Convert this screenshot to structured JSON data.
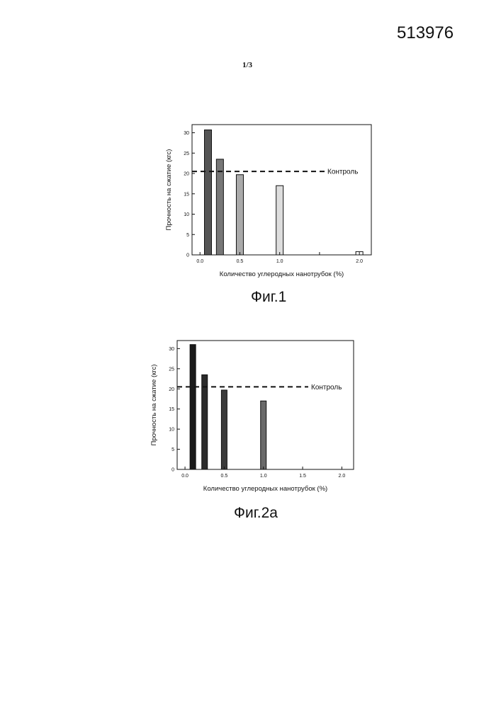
{
  "page": {
    "doc_number": "513976",
    "page_number": "1/3"
  },
  "figures": [
    {
      "caption": "Фиг.1"
    },
    {
      "caption": "Фиг.2а"
    }
  ],
  "chart_data": [
    {
      "type": "bar",
      "title": "",
      "xlabel": "Количество углеродных нанотрубок (%)",
      "ylabel": "Прочность на сжатие (кгс)",
      "xlim": [
        -0.1,
        2.15
      ],
      "ylim": [
        0,
        32
      ],
      "xticks": [
        0.0,
        0.5,
        1.0,
        1.5,
        2.0
      ],
      "xtick_labels": [
        "0.0",
        "0.5",
        "1.0",
        "",
        "2.0"
      ],
      "yticks": [
        0,
        5,
        10,
        15,
        20,
        25,
        30
      ],
      "x": [
        0.1,
        0.25,
        0.5,
        1.0,
        2.0
      ],
      "values": [
        30.7,
        23.5,
        19.7,
        17.0,
        0.8
      ],
      "fills": [
        "#555555",
        "#777777",
        "#aaaaaa",
        "#dddddd",
        "#ffffff"
      ],
      "reference_line": {
        "value": 20.5,
        "label": "Контроль"
      },
      "grid": false
    },
    {
      "type": "bar",
      "title": "",
      "xlabel": "Количество углеродных нанотрубок (%)",
      "ylabel": "Прочность на сжатие (кгс)",
      "xlim": [
        -0.1,
        2.15
      ],
      "ylim": [
        0,
        32
      ],
      "xticks": [
        0.0,
        0.5,
        1.0,
        1.5,
        2.0
      ],
      "xtick_labels": [
        "0.0",
        "0.5",
        "1.0",
        "1.5",
        "2.0"
      ],
      "yticks": [
        0,
        5,
        10,
        15,
        20,
        25,
        30
      ],
      "x": [
        0.1,
        0.25,
        0.5,
        1.0
      ],
      "values": [
        31.0,
        23.5,
        19.7,
        17.0
      ],
      "fills": [
        "#1a1a1a",
        "#2a2a2a",
        "#3a3a3a",
        "#6a6a6a"
      ],
      "reference_line": {
        "value": 20.5,
        "label": "Контроль"
      },
      "grid": false
    }
  ]
}
